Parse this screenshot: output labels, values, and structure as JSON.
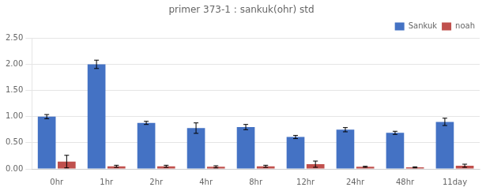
{
  "chart_data": {
    "type": "bar",
    "title": "primer 373-1 : sankuk(ohr) std",
    "categories": [
      "0hr",
      "1hr",
      "2hr",
      "4hr",
      "8hr",
      "12hr",
      "24hr",
      "48hr",
      "11day"
    ],
    "series": [
      {
        "name": "Sankuk",
        "color": "#4472C4",
        "values": [
          1.0,
          2.0,
          0.88,
          0.78,
          0.8,
          0.61,
          0.75,
          0.69,
          0.9
        ],
        "errors": [
          0.04,
          0.08,
          0.03,
          0.1,
          0.05,
          0.03,
          0.04,
          0.03,
          0.07
        ]
      },
      {
        "name": "noah",
        "color": "#C0504D",
        "values": [
          0.14,
          0.05,
          0.05,
          0.04,
          0.05,
          0.09,
          0.04,
          0.03,
          0.06
        ],
        "errors": [
          0.12,
          0.02,
          0.02,
          0.02,
          0.02,
          0.06,
          0.01,
          0.01,
          0.03
        ]
      }
    ],
    "ylim": [
      0,
      2.5
    ],
    "yticks": [
      {
        "value": 0,
        "label": "0.00"
      },
      {
        "value": 0.5,
        "label": "0.50"
      },
      {
        "value": 1,
        "label": "1.00"
      },
      {
        "value": 1.5,
        "label": "1.50"
      },
      {
        "value": 2,
        "label": "2.00"
      },
      {
        "value": 2.5,
        "label": "2.50"
      }
    ],
    "grid": true,
    "legend": "upper right"
  }
}
